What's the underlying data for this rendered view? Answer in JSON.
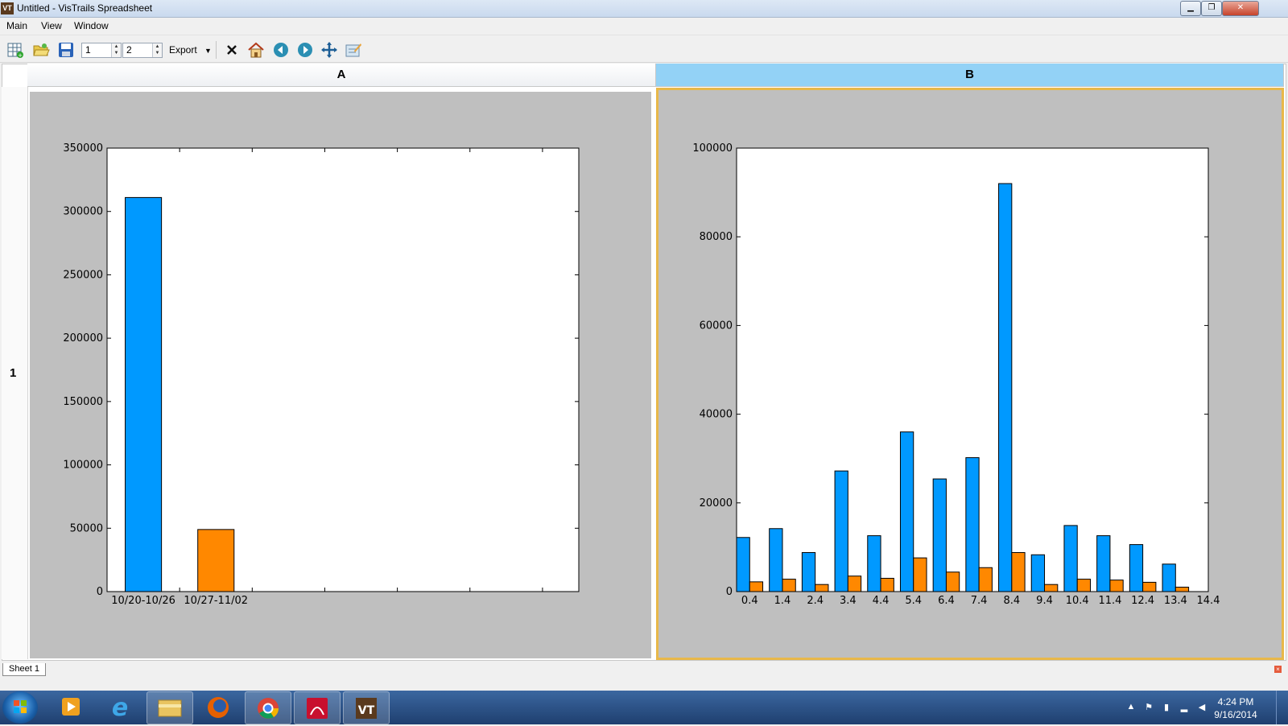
{
  "window": {
    "title": "Untitled - VisTrails Spreadsheet",
    "app_icon": "VT"
  },
  "menu": [
    "Main",
    "View",
    "Window"
  ],
  "toolbar": {
    "rows_value": "1",
    "cols_value": "2",
    "export_label": "Export"
  },
  "spreadsheet": {
    "columns": [
      "A",
      "B"
    ],
    "rows": [
      "1"
    ],
    "selected_column": "B",
    "sheet_tab": "Sheet 1"
  },
  "colors": {
    "series_a": "#0099ff",
    "series_b": "#ff8800",
    "cell_bg": "#bfbfbf",
    "selection": "#e8b84a"
  },
  "chart_data": [
    {
      "type": "bar",
      "categories": [
        "10/20-10/26",
        "10/27-11/02"
      ],
      "values": [
        311000,
        49000
      ],
      "bar_colors": [
        "#0099ff",
        "#ff8800"
      ],
      "yticks": [
        0,
        50000,
        100000,
        150000,
        200000,
        250000,
        300000,
        350000
      ],
      "ylim": [
        0,
        350000
      ],
      "xlim": [
        0,
        6.5
      ],
      "title": "",
      "xlabel": "",
      "ylabel": "",
      "grid": false
    },
    {
      "type": "bar",
      "x": [
        0.4,
        1.4,
        2.4,
        3.4,
        4.4,
        5.4,
        6.4,
        7.4,
        8.4,
        9.4,
        10.4,
        11.4,
        12.4,
        13.4
      ],
      "xticks": [
        "0.4",
        "1.4",
        "2.4",
        "3.4",
        "4.4",
        "5.4",
        "6.4",
        "7.4",
        "8.4",
        "9.4",
        "10.4",
        "11.4",
        "12.4",
        "13.4",
        "14.4"
      ],
      "series": [
        {
          "values": [
            12200,
            14200,
            8800,
            27200,
            12600,
            36000,
            25400,
            30200,
            92000,
            8300,
            14900,
            12600,
            10600,
            6200
          ]
        },
        {
          "values": [
            2200,
            2800,
            1600,
            3500,
            3000,
            7600,
            4400,
            5400,
            8800,
            1600,
            2800,
            2600,
            2100,
            1000
          ]
        }
      ],
      "yticks": [
        0,
        20000,
        40000,
        60000,
        80000,
        100000
      ],
      "ylim": [
        0,
        100000
      ],
      "xlim": [
        0,
        14.4
      ],
      "title": "",
      "xlabel": "",
      "ylabel": "",
      "grid": false
    }
  ],
  "taskbar": {
    "time": "4:24 PM",
    "date": "9/16/2014"
  }
}
